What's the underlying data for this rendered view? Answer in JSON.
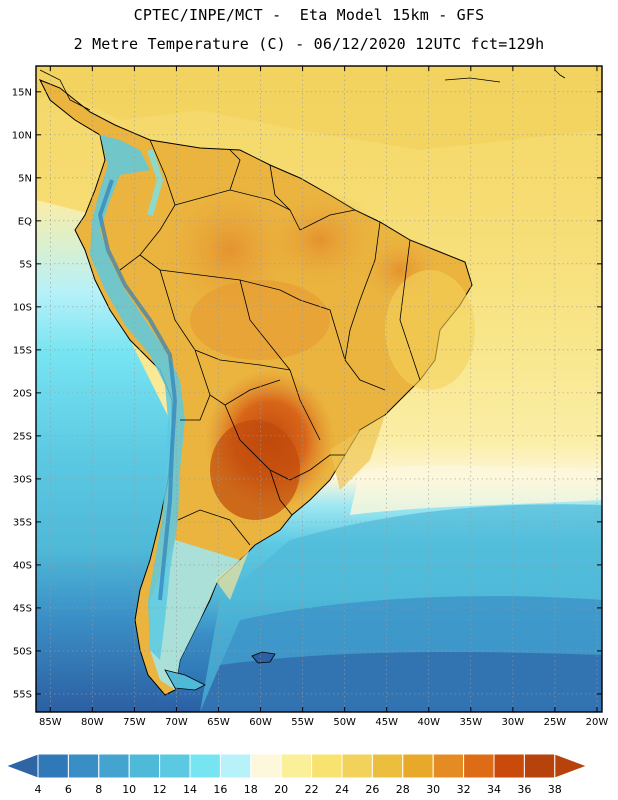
{
  "header": {
    "line1": "CPTEC/INPE/MCT -  Eta Model 15km - GFS",
    "line2": "2 Metre Temperature (C) - 06/12/2020 12UTC fct=129h"
  },
  "map": {
    "lat_labels": [
      "15N",
      "10N",
      "5N",
      "EQ",
      "5S",
      "10S",
      "15S",
      "20S",
      "25S",
      "30S",
      "35S",
      "40S",
      "45S",
      "50S",
      "55S"
    ],
    "lon_labels": [
      "85W",
      "80W",
      "75W",
      "70W",
      "65W",
      "60W",
      "55W",
      "50W",
      "45W",
      "40W",
      "35W",
      "30W",
      "25W",
      "20W"
    ],
    "legend": {
      "labels": [
        "4",
        "6",
        "8",
        "10",
        "12",
        "14",
        "16",
        "18",
        "20",
        "22",
        "24",
        "26",
        "28",
        "30",
        "32",
        "34",
        "36",
        "38"
      ],
      "colors": [
        "#2c5fa3",
        "#3079b8",
        "#3a8ec6",
        "#44a4cf",
        "#4fb9d8",
        "#5cc9e3",
        "#76e4f1",
        "#b7f1f9",
        "#fdf7dc",
        "#fbf09a",
        "#f8e270",
        "#f3d25c",
        "#ecbe3e",
        "#e8a92a",
        "#e48b23",
        "#de6c16",
        "#c94a0a",
        "#b8420b"
      ],
      "low_color": "#2f64a5",
      "high_color": "#b8420b"
    }
  }
}
